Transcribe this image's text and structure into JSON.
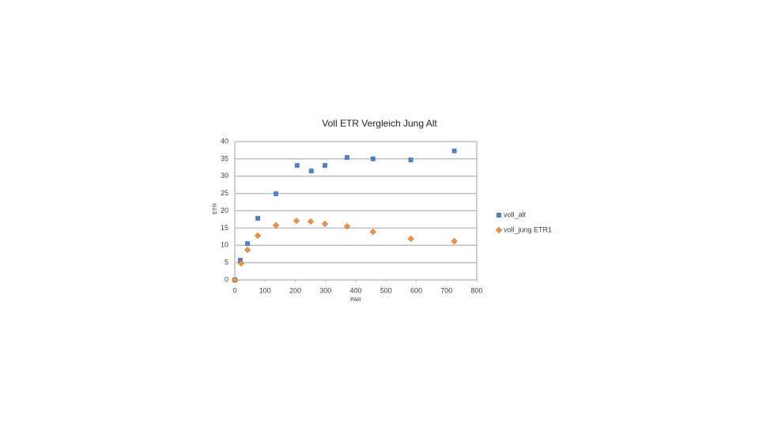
{
  "chart_data": {
    "type": "scatter",
    "title": "Voll ETR Vergleich Jung Alt",
    "x_label": "PAR",
    "y_label": "ETR",
    "xlim": [
      0,
      800
    ],
    "xticks": [
      0,
      100,
      200,
      300,
      400,
      500,
      600,
      700,
      800
    ],
    "ylim": [
      0,
      40
    ],
    "yticks": [
      0,
      5,
      10,
      15,
      20,
      25,
      30,
      35,
      40
    ],
    "grid": true,
    "legend": "right",
    "series": [
      {
        "name": "voll_alt",
        "color": "#4f81bd",
        "marker": "square",
        "x": [
          0,
          18,
          42,
          76,
          136,
          206,
          253,
          298,
          371,
          457,
          582,
          726
        ],
        "values": [
          0,
          5.7,
          10.5,
          17.8,
          24.9,
          33.1,
          31.5,
          33.1,
          35.4,
          35.0,
          34.7,
          37.3
        ]
      },
      {
        "name": "voll_jung ETR1",
        "color": "#f79646",
        "marker": "diamond",
        "x": [
          0,
          21,
          42,
          76,
          136,
          204,
          251,
          298,
          371,
          457,
          582,
          726
        ],
        "values": [
          0,
          4.8,
          8.7,
          12.8,
          15.8,
          17.1,
          16.9,
          16.2,
          15.5,
          13.9,
          11.9,
          11.2
        ]
      }
    ]
  }
}
